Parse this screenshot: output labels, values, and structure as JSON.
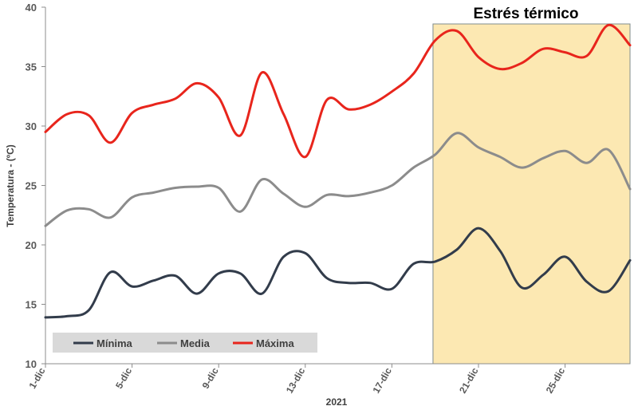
{
  "chart_data": {
    "type": "line",
    "ylabel": "Temperatura - (ºC)",
    "xlabel": "2021",
    "ylim": [
      10,
      40
    ],
    "yticks": [
      10,
      15,
      20,
      25,
      30,
      35,
      40
    ],
    "x_labels": [
      "1-dic",
      "5-dic",
      "9-dic",
      "13-dic",
      "17-dic",
      "21-dic",
      "25-dic"
    ],
    "x_label_days": [
      1,
      5,
      9,
      13,
      17,
      21,
      25
    ],
    "xlim": [
      1,
      28
    ],
    "grid": false,
    "legend_position": "bottom-left",
    "highlight": {
      "label": "Estrés térmico",
      "x_start": 18.9,
      "x_end": 28,
      "fill": "#fce8b2",
      "stroke": "#7f8c8d"
    },
    "x": [
      1,
      2,
      3,
      4,
      5,
      6,
      7,
      8,
      9,
      10,
      11,
      12,
      13,
      14,
      15,
      16,
      17,
      18,
      19,
      20,
      21,
      22,
      23,
      24,
      25,
      26,
      27,
      28
    ],
    "series": [
      {
        "name": "Mínima",
        "color": "#323c4b",
        "values": [
          13.9,
          14.0,
          14.5,
          17.7,
          16.5,
          17.0,
          17.4,
          15.9,
          17.6,
          17.6,
          15.9,
          19.0,
          19.3,
          17.2,
          16.8,
          16.8,
          16.3,
          18.4,
          18.6,
          19.6,
          21.4,
          19.5,
          16.4,
          17.5,
          19.0,
          16.9,
          16.1,
          18.7
        ]
      },
      {
        "name": "Media",
        "color": "#8c8c8c",
        "values": [
          21.6,
          22.9,
          23.0,
          22.3,
          24.0,
          24.4,
          24.8,
          24.9,
          24.8,
          22.8,
          25.5,
          24.3,
          23.2,
          24.2,
          24.1,
          24.4,
          25.0,
          26.5,
          27.6,
          29.4,
          28.2,
          27.4,
          26.5,
          27.3,
          27.9,
          26.9,
          28.0,
          24.7
        ]
      },
      {
        "name": "Máxima",
        "color": "#e8251c",
        "values": [
          29.5,
          31.0,
          30.9,
          28.6,
          31.1,
          31.8,
          32.3,
          33.6,
          32.4,
          29.2,
          34.5,
          31.0,
          27.4,
          32.2,
          31.4,
          31.8,
          32.9,
          34.4,
          37.2,
          38.0,
          35.8,
          34.8,
          35.3,
          36.5,
          36.2,
          35.9,
          38.5,
          36.8
        ]
      }
    ]
  }
}
